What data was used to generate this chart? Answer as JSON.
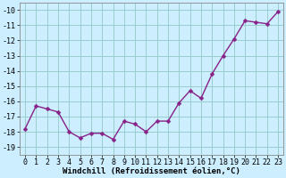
{
  "x": [
    0,
    1,
    2,
    3,
    4,
    5,
    6,
    7,
    8,
    9,
    10,
    11,
    12,
    13,
    14,
    15,
    16,
    17,
    18,
    19,
    20,
    21,
    22,
    23
  ],
  "y": [
    -17.8,
    -16.3,
    -16.5,
    -16.7,
    -18.0,
    -18.4,
    -18.1,
    -18.1,
    -18.5,
    -17.3,
    -17.5,
    -18.0,
    -17.3,
    -17.3,
    -16.1,
    -15.3,
    -15.8,
    -14.2,
    -13.0,
    -11.9,
    -10.7,
    -10.8,
    -10.9,
    -10.1
  ],
  "line_color": "#882288",
  "marker": "D",
  "marker_size": 2.5,
  "linewidth": 1.0,
  "bg_color": "#cceeff",
  "grid_color": "#99cccc",
  "xlabel": "Windchill (Refroidissement éolien,°C)",
  "xlabel_fontsize": 6.5,
  "tick_fontsize": 6.0,
  "xlim": [
    -0.5,
    23.5
  ],
  "ylim": [
    -19.5,
    -9.5
  ],
  "yticks": [
    -10,
    -11,
    -12,
    -13,
    -14,
    -15,
    -16,
    -17,
    -18,
    -19
  ],
  "xticks": [
    0,
    1,
    2,
    3,
    4,
    5,
    6,
    7,
    8,
    9,
    10,
    11,
    12,
    13,
    14,
    15,
    16,
    17,
    18,
    19,
    20,
    21,
    22,
    23
  ]
}
